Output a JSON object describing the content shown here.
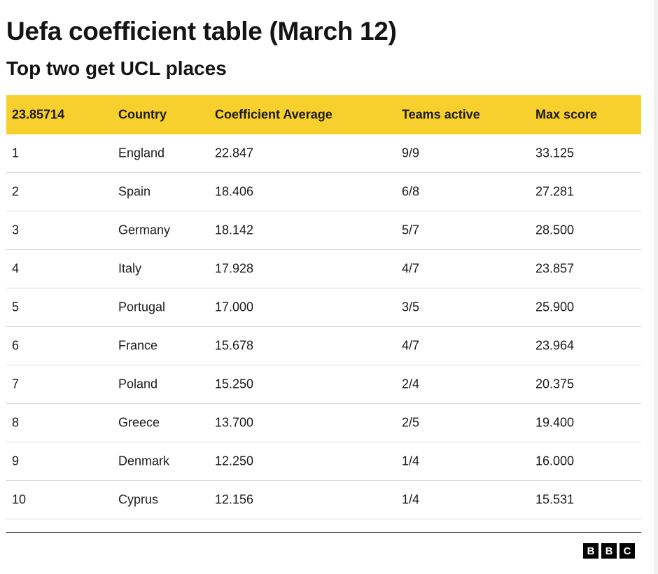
{
  "header": {
    "title": "Uefa coefficient table (March 12)",
    "subtitle": "Top two get UCL places"
  },
  "colors": {
    "header_bg": "#f7d02d",
    "row_divider": "#d9d9d9"
  },
  "chart_data": {
    "type": "table",
    "columns": [
      "23.85714",
      "Country",
      "Coefficient Average",
      "Teams active",
      "Max score"
    ],
    "rows": [
      [
        "1",
        "England",
        "22.847",
        "9/9",
        "33.125"
      ],
      [
        "2",
        "Spain",
        "18.406",
        "6/8",
        "27.281"
      ],
      [
        "3",
        "Germany",
        "18.142",
        "5/7",
        "28.500"
      ],
      [
        "4",
        "Italy",
        "17.928",
        "4/7",
        "23.857"
      ],
      [
        "5",
        "Portugal",
        "17.000",
        "3/5",
        "25.900"
      ],
      [
        "6",
        "France",
        "15.678",
        "4/7",
        "23.964"
      ],
      [
        "7",
        "Poland",
        "15.250",
        "2/4",
        "20.375"
      ],
      [
        "8",
        "Greece",
        "13.700",
        "2/5",
        "19.400"
      ],
      [
        "9",
        "Denmark",
        "12.250",
        "1/4",
        "16.000"
      ],
      [
        "10",
        "Cyprus",
        "12.156",
        "1/4",
        "15.531"
      ]
    ]
  },
  "footer": {
    "logo": [
      "B",
      "B",
      "C"
    ]
  }
}
